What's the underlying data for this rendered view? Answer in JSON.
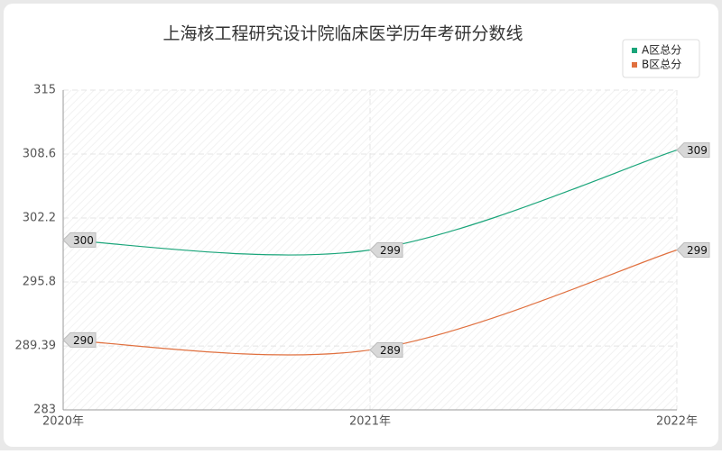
{
  "chart_data": {
    "type": "line",
    "title": "上海核工程研究设计院临床医学历年考研分数线",
    "categories": [
      "2020年",
      "2021年",
      "2022年"
    ],
    "series": [
      {
        "name": "A区总分",
        "color": "#1aa57a",
        "values": [
          300,
          299,
          309
        ]
      },
      {
        "name": "B区总分",
        "color": "#e0703f",
        "values": [
          290,
          289,
          299
        ]
      }
    ],
    "ylim": [
      283,
      315
    ],
    "yticks": [
      283,
      289.39,
      295.8,
      302.2,
      308.6,
      315
    ],
    "grid": true,
    "legend": "top-right"
  }
}
